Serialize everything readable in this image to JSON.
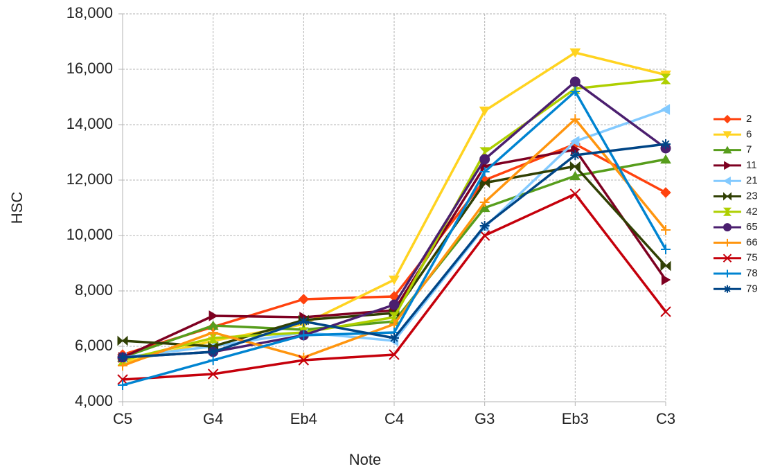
{
  "chart_data": {
    "type": "line",
    "x_label": "Note",
    "y_label": "HSC",
    "categories": [
      "C5",
      "G4",
      "Eb4",
      "C4",
      "G3",
      "Eb3",
      "C3"
    ],
    "ylim": [
      4000,
      18000
    ],
    "yticks": [
      {
        "value": 4000,
        "label": "4,000"
      },
      {
        "value": 6000,
        "label": "6,000"
      },
      {
        "value": 8000,
        "label": "8,000"
      },
      {
        "value": 10000,
        "label": "10,000"
      },
      {
        "value": 12000,
        "label": "12,000"
      },
      {
        "value": 14000,
        "label": "14,000"
      },
      {
        "value": 16000,
        "label": "16,000"
      },
      {
        "value": 18000,
        "label": "18,000"
      }
    ],
    "grid": true,
    "legend": "right",
    "series": [
      {
        "name": "2",
        "color": "#ff420e",
        "marker": "diamond",
        "values": [
          5700,
          6700,
          7700,
          7800,
          12000,
          13300,
          11550
        ]
      },
      {
        "name": "6",
        "color": "#ffd320",
        "marker": "tri-down",
        "values": [
          5400,
          6200,
          6800,
          8400,
          14500,
          16600,
          15800
        ]
      },
      {
        "name": "7",
        "color": "#579d1c",
        "marker": "tri-up",
        "values": [
          5600,
          6750,
          6600,
          6900,
          11000,
          12150,
          12750
        ]
      },
      {
        "name": "11",
        "color": "#7e0021",
        "marker": "tri-right",
        "values": [
          5600,
          7100,
          7050,
          7300,
          12500,
          13100,
          8400
        ]
      },
      {
        "name": "21",
        "color": "#83caff",
        "marker": "tri-left",
        "values": [
          5600,
          6000,
          6500,
          6200,
          10300,
          13400,
          14550
        ]
      },
      {
        "name": "23",
        "color": "#314004",
        "marker": "bowtie",
        "values": [
          6200,
          6000,
          6950,
          7200,
          11900,
          12500,
          8900
        ]
      },
      {
        "name": "42",
        "color": "#aecf00",
        "marker": "hourglass",
        "values": [
          5500,
          6300,
          6500,
          7050,
          13000,
          15300,
          15650
        ]
      },
      {
        "name": "65",
        "color": "#4b1f6f",
        "marker": "circle",
        "values": [
          5600,
          5800,
          6400,
          7500,
          12750,
          15550,
          13150
        ]
      },
      {
        "name": "66",
        "color": "#ff950e",
        "marker": "plus",
        "values": [
          5300,
          6500,
          5600,
          6800,
          11200,
          14200,
          10200
        ]
      },
      {
        "name": "75",
        "color": "#c5000b",
        "marker": "x",
        "values": [
          4800,
          5000,
          5500,
          5700,
          10000,
          11500,
          7250
        ]
      },
      {
        "name": "78",
        "color": "#0084d1",
        "marker": "plus",
        "values": [
          4600,
          5500,
          6400,
          6500,
          12300,
          15200,
          9500
        ]
      },
      {
        "name": "79",
        "color": "#004586",
        "marker": "star",
        "values": [
          5600,
          5800,
          6900,
          6300,
          10350,
          12900,
          13300
        ]
      }
    ]
  }
}
